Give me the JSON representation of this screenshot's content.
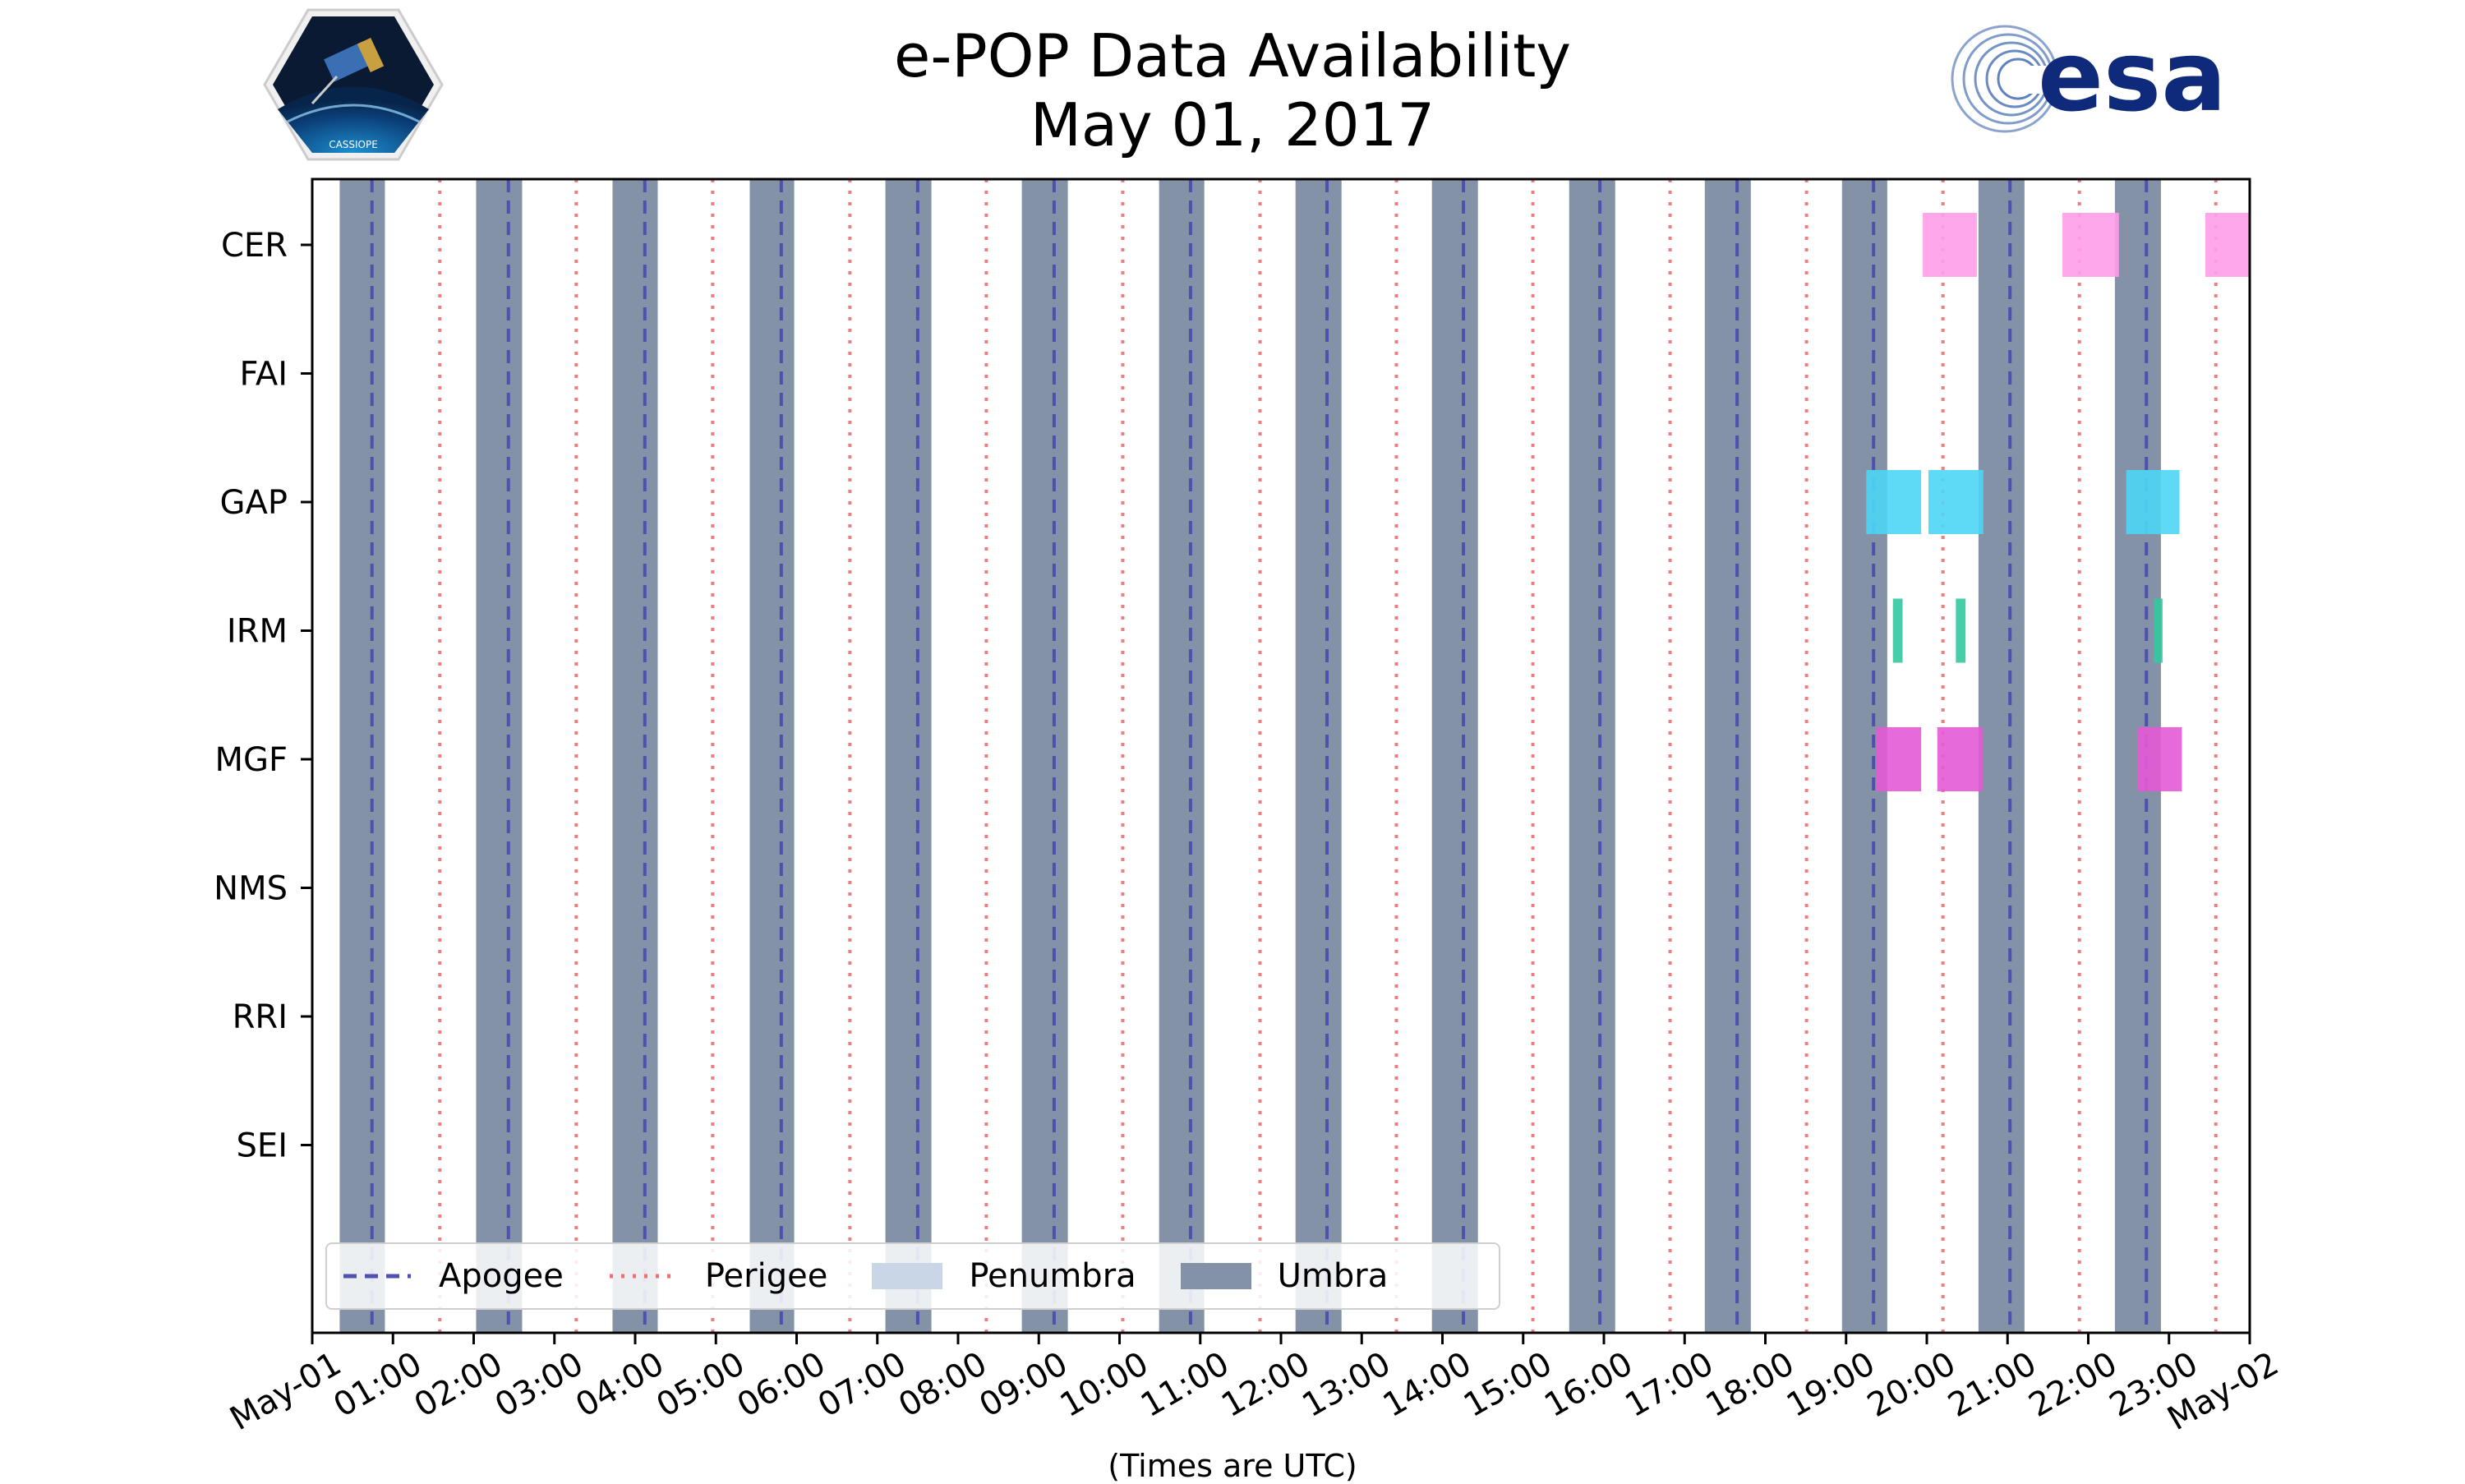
{
  "title": "e-POP Data Availability",
  "subtitle": "May 01, 2017",
  "logos": {
    "left": {
      "icon": "cassiope-satellite-logo",
      "text": "CASSIOPE"
    },
    "right": {
      "icon": "esa-logo",
      "text": "esa",
      "color": "#0f2a7a"
    }
  },
  "chart_data": {
    "type": "timeline",
    "title": "e-POP Data Availability",
    "subtitle": "May 01, 2017",
    "xlabel": "(Times are UTC)",
    "xlim_hours": [
      0,
      24
    ],
    "x_tick_labels": [
      "May-01",
      "01:00",
      "02:00",
      "03:00",
      "04:00",
      "05:00",
      "06:00",
      "07:00",
      "08:00",
      "09:00",
      "10:00",
      "11:00",
      "12:00",
      "13:00",
      "14:00",
      "15:00",
      "16:00",
      "17:00",
      "18:00",
      "19:00",
      "20:00",
      "21:00",
      "22:00",
      "23:00",
      "May-02"
    ],
    "instruments": [
      "CER",
      "FAI",
      "GAP",
      "IRM",
      "MGF",
      "NMS",
      "RRI",
      "SEI"
    ],
    "umbra_intervals_hours": [
      [
        0.34,
        0.9
      ],
      [
        2.03,
        2.6
      ],
      [
        3.72,
        4.28
      ],
      [
        5.42,
        5.97
      ],
      [
        7.1,
        7.67
      ],
      [
        8.79,
        9.36
      ],
      [
        10.49,
        11.05
      ],
      [
        12.18,
        12.75
      ],
      [
        13.87,
        14.44
      ],
      [
        15.57,
        16.14
      ],
      [
        17.25,
        17.82
      ],
      [
        18.95,
        19.51
      ],
      [
        20.64,
        21.21
      ],
      [
        22.33,
        22.9
      ]
    ],
    "apogee_hours": [
      0.74,
      2.43,
      4.12,
      5.81,
      7.5,
      9.19,
      10.88,
      12.57,
      14.26,
      15.95,
      17.65,
      19.34,
      21.03,
      22.72
    ],
    "perigee_hours": [
      1.58,
      3.27,
      4.96,
      6.66,
      8.35,
      10.04,
      11.74,
      13.43,
      15.12,
      16.82,
      18.51,
      20.2,
      21.89,
      23.58
    ],
    "data_intervals_hours": {
      "CER": [
        [
          19.95,
          20.62
        ],
        [
          21.68,
          22.38
        ],
        [
          23.45,
          24.0
        ]
      ],
      "FAI": [],
      "GAP": [
        [
          19.25,
          19.93
        ],
        [
          20.02,
          20.7
        ],
        [
          22.47,
          23.13
        ]
      ],
      "IRM": [
        [
          19.58,
          19.7
        ],
        [
          20.36,
          20.48
        ],
        [
          22.81,
          22.92
        ]
      ],
      "MGF": [
        [
          19.37,
          19.93
        ],
        [
          20.13,
          20.69
        ],
        [
          22.61,
          23.16
        ]
      ],
      "NMS": [],
      "RRI": [],
      "SEI": []
    },
    "instrument_colors": {
      "CER": "#ff9de8",
      "GAP": "#4dd6f5",
      "IRM": "#33c9a0",
      "MGF": "#e45ad6"
    },
    "colors": {
      "umbra": "#8392a6",
      "penumbra": "#c9d6e6",
      "apogee": "#5050b0",
      "perigee": "#f07070"
    },
    "legend": {
      "placement": "bottom-left",
      "entries": [
        {
          "label": "Apogee",
          "style": "dashed-line",
          "color": "#5050b0"
        },
        {
          "label": "Perigee",
          "style": "dotted-line",
          "color": "#f07070"
        },
        {
          "label": "Penumbra",
          "style": "patch",
          "color": "#c9d6e6"
        },
        {
          "label": "Umbra",
          "style": "patch",
          "color": "#8392a6"
        }
      ]
    },
    "grid": false
  }
}
